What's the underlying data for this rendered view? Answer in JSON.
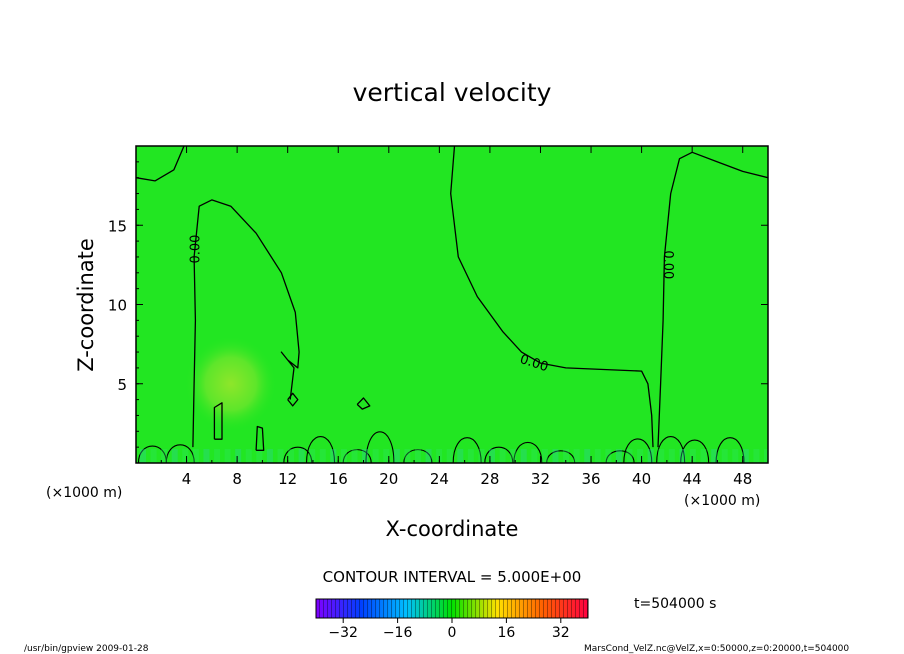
{
  "chart_data": {
    "type": "heatmap",
    "title": "vertical velocity",
    "xlabel": "X-coordinate",
    "ylabel": "Z-coordinate",
    "x_unit_left": "(×1000 m)",
    "x_unit_right": "(×1000 m)",
    "xlim": [
      0,
      50
    ],
    "ylim": [
      0,
      20
    ],
    "x_ticks": [
      4,
      8,
      12,
      16,
      20,
      24,
      28,
      32,
      36,
      40,
      44,
      48
    ],
    "y_ticks": [
      5,
      10,
      15
    ],
    "contour_interval_label": "CONTOUR INTERVAL = 5.000E+00",
    "time_label": "t=504000 s",
    "colorbar": {
      "min": -40,
      "max": 40,
      "ticks": [
        -32,
        -16,
        0,
        16,
        32
      ],
      "colors": [
        "#8000ff",
        "#0040ff",
        "#00c0ff",
        "#00e000",
        "#ffe000",
        "#ff6000",
        "#ff0040"
      ]
    },
    "field_background_color": "#22e622",
    "contours": [
      {
        "level": 0.0,
        "label": "0.00",
        "label_at": [
          4.7,
          13.5
        ],
        "points": [
          [
            4.5,
            1
          ],
          [
            4.6,
            5
          ],
          [
            4.7,
            9
          ],
          [
            4.6,
            13
          ],
          [
            5,
            16.2
          ],
          [
            6,
            16.6
          ],
          [
            7.5,
            16.2
          ],
          [
            9.5,
            14.5
          ],
          [
            11.5,
            12
          ],
          [
            12.6,
            9.5
          ],
          [
            12.9,
            7
          ],
          [
            12.8,
            6
          ],
          [
            12,
            6.5
          ],
          [
            11.5,
            7
          ],
          [
            12.5,
            6
          ],
          [
            12.2,
            4
          ]
        ]
      },
      {
        "level": 0.0,
        "label": "0.00",
        "label_at": [
          31.5,
          6.3
        ],
        "points": [
          [
            25.2,
            20
          ],
          [
            24.9,
            17
          ],
          [
            25.5,
            13
          ],
          [
            27,
            10.5
          ],
          [
            29,
            8.3
          ],
          [
            30.5,
            7
          ],
          [
            32,
            6.3
          ],
          [
            34,
            6
          ],
          [
            37,
            5.9
          ],
          [
            40,
            5.8
          ],
          [
            40.5,
            5
          ],
          [
            40.8,
            3
          ],
          [
            40.9,
            1
          ]
        ]
      },
      {
        "level": 0.0,
        "label": "0.00",
        "label_at": [
          42.1,
          12.5
        ],
        "points": [
          [
            41.3,
            1
          ],
          [
            41.5,
            5
          ],
          [
            41.7,
            9
          ],
          [
            41.8,
            13
          ],
          [
            42.3,
            17
          ],
          [
            43,
            19.2
          ],
          [
            44,
            19.6
          ],
          [
            46,
            19
          ],
          [
            48,
            18.4
          ],
          [
            50,
            18
          ]
        ]
      },
      {
        "level": 0.0,
        "label": "",
        "points": [
          [
            0,
            18
          ],
          [
            1.5,
            17.8
          ],
          [
            3,
            18.5
          ],
          [
            3.8,
            20
          ]
        ]
      },
      {
        "level": 5.0,
        "label": "",
        "points": [
          [
            6.2,
            1.5
          ],
          [
            6.2,
            3.5
          ],
          [
            6.8,
            3.8
          ],
          [
            6.8,
            1.5
          ],
          [
            6.2,
            1.5
          ]
        ]
      },
      {
        "level": 0.0,
        "label": "",
        "points": [
          [
            9.5,
            0.8
          ],
          [
            9.6,
            2.3
          ],
          [
            10,
            2.2
          ],
          [
            10.1,
            0.8
          ],
          [
            9.5,
            0.8
          ]
        ]
      },
      {
        "level": 0.0,
        "label": "",
        "points": [
          [
            12,
            4
          ],
          [
            12.4,
            4.4
          ],
          [
            12.8,
            4
          ],
          [
            12.4,
            3.6
          ],
          [
            12,
            4
          ]
        ]
      },
      {
        "level": 0.0,
        "label": "",
        "points": [
          [
            17.5,
            3.7
          ],
          [
            18,
            4.1
          ],
          [
            18.5,
            3.6
          ],
          [
            17.9,
            3.4
          ],
          [
            17.5,
            3.7
          ]
        ]
      }
    ],
    "wave_contours_near_ground": true,
    "warm_anomaly_center": [
      7.5,
      5.0
    ]
  },
  "footer": {
    "left": "/usr/bin/gpview   2009-01-28",
    "right": "MarsCond_VelZ.nc@VelZ,x=0:50000,z=0:20000,t=504000"
  }
}
